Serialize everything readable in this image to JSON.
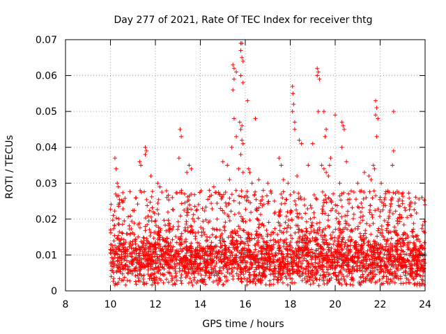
{
  "chart_data": {
    "type": "scatter",
    "title": "Day 277 of 2021, Rate Of TEC Index for receiver thtg",
    "xlabel": "GPS time / hours",
    "ylabel": "ROTI / TECUs",
    "xlim": [
      8,
      24
    ],
    "ylim": [
      0,
      0.07
    ],
    "x_ticks": [
      8,
      10,
      12,
      14,
      16,
      18,
      20,
      22,
      24
    ],
    "x_tick_labels": [
      "8",
      "10",
      "12",
      "14",
      "16",
      "18",
      "20",
      "22",
      "24"
    ],
    "y_ticks": [
      0,
      0.01,
      0.02,
      0.03,
      0.04,
      0.05,
      0.06,
      0.07
    ],
    "y_tick_labels": [
      "0",
      "0.01",
      "0.02",
      "0.03",
      "0.04",
      "0.05",
      "0.06",
      "0.07"
    ],
    "grid": true,
    "marker": "+",
    "color": "#ff0000",
    "data_extent": {
      "x": [
        10,
        24
      ],
      "typical_y": [
        0.003,
        0.02
      ]
    },
    "outliers": [
      [
        10.2,
        0.037
      ],
      [
        10.25,
        0.034
      ],
      [
        10.3,
        0.03
      ],
      [
        10.35,
        0.029
      ],
      [
        11.3,
        0.036
      ],
      [
        11.35,
        0.035
      ],
      [
        11.55,
        0.04
      ],
      [
        11.6,
        0.039
      ],
      [
        11.55,
        0.038
      ],
      [
        11.8,
        0.032
      ],
      [
        12.1,
        0.03
      ],
      [
        12.2,
        0.029
      ],
      [
        13.1,
        0.045
      ],
      [
        13.15,
        0.043
      ],
      [
        13.05,
        0.037
      ],
      [
        13.5,
        0.035
      ],
      [
        13.6,
        0.034
      ],
      [
        13.4,
        0.033
      ],
      [
        13.3,
        0.027
      ],
      [
        14.4,
        0.028
      ],
      [
        14.6,
        0.029
      ],
      [
        15.0,
        0.036
      ],
      [
        15.2,
        0.035
      ],
      [
        15.3,
        0.031
      ],
      [
        15.45,
        0.063
      ],
      [
        15.5,
        0.062
      ],
      [
        15.6,
        0.061
      ],
      [
        15.5,
        0.059
      ],
      [
        15.45,
        0.056
      ],
      [
        15.5,
        0.048
      ],
      [
        15.6,
        0.043
      ],
      [
        15.4,
        0.04
      ],
      [
        15.8,
        0.069
      ],
      [
        15.85,
        0.069
      ],
      [
        15.8,
        0.067
      ],
      [
        15.85,
        0.065
      ],
      [
        15.9,
        0.064
      ],
      [
        15.8,
        0.06
      ],
      [
        15.9,
        0.058
      ],
      [
        15.75,
        0.047
      ],
      [
        15.85,
        0.046
      ],
      [
        15.8,
        0.045
      ],
      [
        15.85,
        0.042
      ],
      [
        15.9,
        0.041
      ],
      [
        15.8,
        0.038
      ],
      [
        15.7,
        0.034
      ],
      [
        15.9,
        0.033
      ],
      [
        16.1,
        0.053
      ],
      [
        16.15,
        0.034
      ],
      [
        16.2,
        0.033
      ],
      [
        16.3,
        0.03
      ],
      [
        16.45,
        0.048
      ],
      [
        16.6,
        0.031
      ],
      [
        16.8,
        0.028
      ],
      [
        17.0,
        0.03
      ],
      [
        17.5,
        0.037
      ],
      [
        17.6,
        0.035
      ],
      [
        17.7,
        0.031
      ],
      [
        17.9,
        0.03
      ],
      [
        18.1,
        0.057
      ],
      [
        18.12,
        0.055
      ],
      [
        18.15,
        0.052
      ],
      [
        18.1,
        0.05
      ],
      [
        18.2,
        0.047
      ],
      [
        18.2,
        0.045
      ],
      [
        18.4,
        0.042
      ],
      [
        18.5,
        0.041
      ],
      [
        18.3,
        0.032
      ],
      [
        18.8,
        0.035
      ],
      [
        19.0,
        0.041
      ],
      [
        19.2,
        0.062
      ],
      [
        19.25,
        0.061
      ],
      [
        19.2,
        0.06
      ],
      [
        19.3,
        0.059
      ],
      [
        19.25,
        0.05
      ],
      [
        19.5,
        0.05
      ],
      [
        19.6,
        0.045
      ],
      [
        19.55,
        0.043
      ],
      [
        19.4,
        0.035
      ],
      [
        19.5,
        0.034
      ],
      [
        19.6,
        0.033
      ],
      [
        19.7,
        0.032
      ],
      [
        19.8,
        0.037
      ],
      [
        19.75,
        0.035
      ],
      [
        20.0,
        0.049
      ],
      [
        20.3,
        0.047
      ],
      [
        20.35,
        0.046
      ],
      [
        20.4,
        0.045
      ],
      [
        20.3,
        0.04
      ],
      [
        20.5,
        0.036
      ],
      [
        20.2,
        0.03
      ],
      [
        21.0,
        0.03
      ],
      [
        21.3,
        0.033
      ],
      [
        21.5,
        0.032
      ],
      [
        21.8,
        0.053
      ],
      [
        21.85,
        0.051
      ],
      [
        21.8,
        0.049
      ],
      [
        21.9,
        0.048
      ],
      [
        21.85,
        0.043
      ],
      [
        21.7,
        0.035
      ],
      [
        21.75,
        0.034
      ],
      [
        21.6,
        0.031
      ],
      [
        22.05,
        0.03
      ],
      [
        22.6,
        0.05
      ],
      [
        22.6,
        0.039
      ],
      [
        22.55,
        0.035
      ],
      [
        22.8,
        0.025
      ],
      [
        23.3,
        0.024
      ]
    ]
  }
}
